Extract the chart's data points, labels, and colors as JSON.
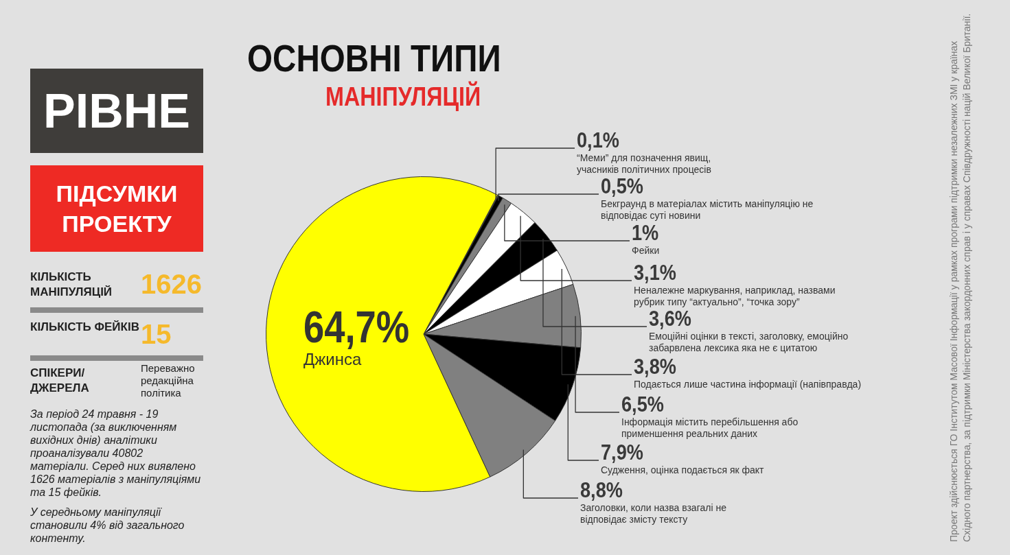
{
  "chart_data": {
    "type": "pie",
    "title": "ОСНОВНІ ТИПИ",
    "subtitle": "МАНІПУЛЯЦІЙ",
    "categories": [
      "“Меми” для позначення явищ, учасників політичних процесів",
      "Бекграунд в матеріалах містить маніпуляцію не відповідає суті новини",
      "Фейки",
      "Неналежне маркування, наприклад, назвами рубрик типу “актуально”, “точка зору”",
      "Емоційні оцінки в тексті, заголовку, емоційно забарвлена лексика яка не є цитатою",
      "Подається лише частина інформації (напівправда)",
      "Інформація містить перебільшення або применшення реальних даних",
      "Судження, оцінка подається як факт",
      "Заголовки, коли назва взагалі не відповідає змісту тексту",
      "Джинса"
    ],
    "values": [
      0.1,
      0.5,
      1,
      3.1,
      3.6,
      3.8,
      6.5,
      7.9,
      8.8,
      64.7
    ],
    "colors": [
      "#808080",
      "#000000",
      "#808080",
      "#ffffff",
      "#000000",
      "#ffffff",
      "#808080",
      "#000000",
      "#808080",
      "#ffff00"
    ],
    "value_labels": [
      "0,1%",
      "0,5%",
      "1%",
      "3,1%",
      "3,6%",
      "3,8%",
      "6,5%",
      "7,9%",
      "8,8%",
      "64,7%"
    ],
    "annotations": [
      "РІВНЕ",
      "ПІДСУМКИ ПРОЕКТУ",
      "КІЛЬКІСТЬ МАНІПУЛЯЦІЙ",
      "1626",
      "КІЛЬКІСТЬ ФЕЙКІВ",
      "15",
      "СПІКЕРИ/ ДЖЕРЕЛА",
      "Переважно редакційна політика",
      "За період 24 травня - 19 листопада (за виключенням вихідних днів) аналітики проаналізували 40802 матеріали. Серед них виявлено 1626 матеріалів з маніпуляціями та 15 фейків.",
      "У середньому маніпуляції становили 4% від загального контенту.",
      "Проект здійснюється ГО Інститутом Масової Інформації у рамках програми підтримки незалежних ЗМІ у країнах Східного партнерства, за підтримки Міністерства закордонних справ і у справах Співдружності націй Великої Британії."
    ]
  }
}
